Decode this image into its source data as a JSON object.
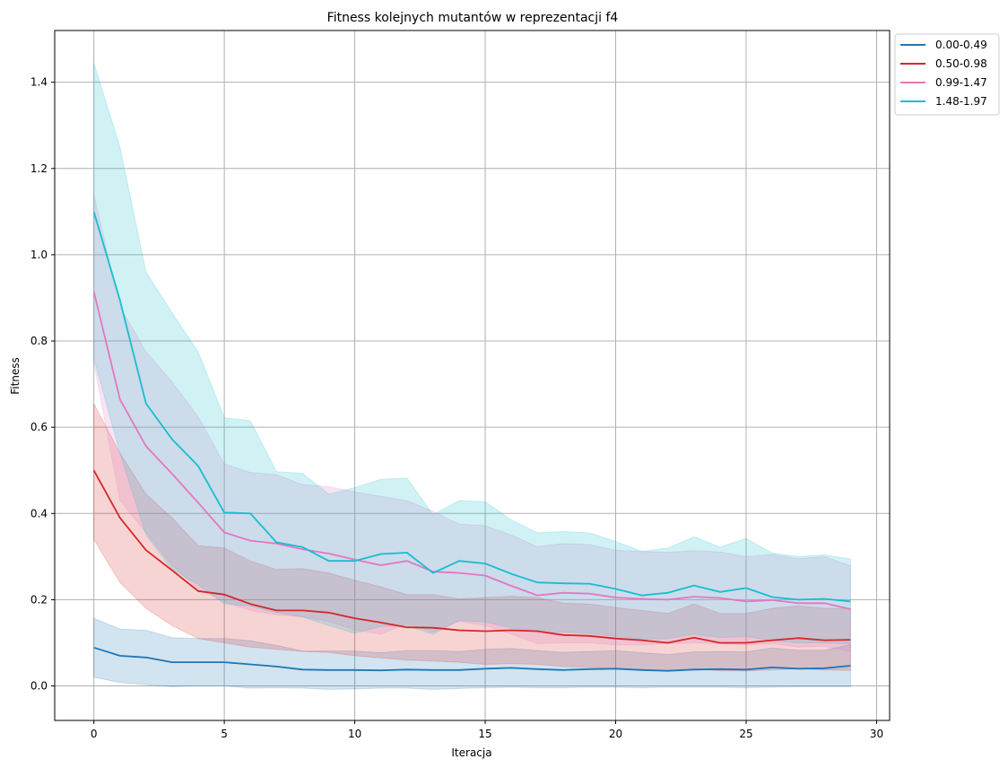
{
  "chart_data": {
    "type": "line",
    "title": "Fitness kolejnych mutantów w reprezentacji f4",
    "xlabel": "Iteracja",
    "ylabel": "Fitness",
    "xlim": [
      -1.5,
      30.5
    ],
    "ylim": [
      -0.08,
      1.52
    ],
    "xticks": [
      0,
      5,
      10,
      15,
      20,
      25,
      30
    ],
    "yticks": [
      0.0,
      0.2,
      0.4,
      0.6,
      0.8,
      1.0,
      1.2,
      1.4
    ],
    "grid": true,
    "legend_position": "outside top-right",
    "x": [
      0,
      1,
      2,
      3,
      4,
      5,
      6,
      7,
      8,
      9,
      10,
      11,
      12,
      13,
      14,
      15,
      16,
      17,
      18,
      19,
      20,
      21,
      22,
      23,
      24,
      25,
      26,
      27,
      28,
      29
    ],
    "series": [
      {
        "name": "0.00-0.49",
        "color": "#1f77b4",
        "mean": [
          0.089,
          0.07,
          0.066,
          0.055,
          0.055,
          0.055,
          0.05,
          0.045,
          0.038,
          0.037,
          0.037,
          0.036,
          0.038,
          0.037,
          0.037,
          0.04,
          0.042,
          0.039,
          0.037,
          0.039,
          0.04,
          0.037,
          0.035,
          0.038,
          0.039,
          0.038,
          0.043,
          0.04,
          0.041,
          0.047
        ],
        "lower": [
          0.02,
          0.008,
          0.003,
          -0.002,
          0.0,
          0.0,
          -0.005,
          -0.004,
          -0.005,
          -0.008,
          -0.007,
          -0.005,
          -0.005,
          -0.008,
          -0.006,
          -0.004,
          -0.003,
          -0.004,
          -0.004,
          -0.003,
          -0.003,
          -0.004,
          -0.003,
          -0.003,
          -0.003,
          -0.004,
          -0.003,
          -0.002,
          -0.002,
          -0.002
        ],
        "upper": [
          0.157,
          0.132,
          0.129,
          0.112,
          0.11,
          0.11,
          0.105,
          0.094,
          0.081,
          0.081,
          0.081,
          0.077,
          0.082,
          0.082,
          0.08,
          0.085,
          0.087,
          0.082,
          0.078,
          0.08,
          0.082,
          0.077,
          0.073,
          0.079,
          0.08,
          0.079,
          0.088,
          0.083,
          0.083,
          0.096
        ]
      },
      {
        "name": "0.50-0.98",
        "color": "#d62728",
        "mean": [
          0.5,
          0.39,
          0.315,
          0.268,
          0.22,
          0.212,
          0.19,
          0.175,
          0.175,
          0.17,
          0.157,
          0.147,
          0.136,
          0.135,
          0.129,
          0.127,
          0.129,
          0.127,
          0.118,
          0.116,
          0.11,
          0.106,
          0.1,
          0.112,
          0.1,
          0.1,
          0.106,
          0.111,
          0.106,
          0.107
        ],
        "lower": [
          0.34,
          0.24,
          0.18,
          0.14,
          0.11,
          0.1,
          0.09,
          0.085,
          0.08,
          0.078,
          0.07,
          0.065,
          0.06,
          0.058,
          0.055,
          0.05,
          0.052,
          0.05,
          0.045,
          0.043,
          0.04,
          0.038,
          0.035,
          0.04,
          0.035,
          0.035,
          0.037,
          0.04,
          0.037,
          0.036
        ],
        "upper": [
          0.655,
          0.54,
          0.445,
          0.39,
          0.325,
          0.32,
          0.29,
          0.27,
          0.272,
          0.262,
          0.245,
          0.23,
          0.212,
          0.212,
          0.202,
          0.205,
          0.208,
          0.205,
          0.192,
          0.19,
          0.182,
          0.175,
          0.168,
          0.19,
          0.168,
          0.168,
          0.18,
          0.186,
          0.18,
          0.18
        ]
      },
      {
        "name": "0.99-1.47",
        "color": "#e377c2",
        "mean": [
          0.915,
          0.665,
          0.556,
          0.492,
          0.425,
          0.356,
          0.337,
          0.33,
          0.317,
          0.307,
          0.293,
          0.28,
          0.29,
          0.265,
          0.262,
          0.256,
          0.232,
          0.21,
          0.216,
          0.214,
          0.205,
          0.202,
          0.2,
          0.207,
          0.204,
          0.196,
          0.199,
          0.192,
          0.192,
          0.178
        ],
        "lower": [
          0.75,
          0.43,
          0.355,
          0.28,
          0.225,
          0.195,
          0.175,
          0.165,
          0.16,
          0.15,
          0.13,
          0.12,
          0.145,
          0.125,
          0.15,
          0.14,
          0.12,
          0.098,
          0.1,
          0.1,
          0.095,
          0.095,
          0.098,
          0.1,
          0.098,
          0.095,
          0.098,
          0.09,
          0.092,
          0.08
        ],
        "upper": [
          1.14,
          0.88,
          0.775,
          0.705,
          0.625,
          0.515,
          0.495,
          0.49,
          0.467,
          0.462,
          0.45,
          0.44,
          0.43,
          0.405,
          0.375,
          0.372,
          0.35,
          0.323,
          0.33,
          0.328,
          0.315,
          0.312,
          0.31,
          0.314,
          0.311,
          0.3,
          0.305,
          0.295,
          0.3,
          0.279
        ]
      },
      {
        "name": "1.48-1.97",
        "color": "#17becf",
        "mean": [
          1.1,
          0.895,
          0.655,
          0.572,
          0.51,
          0.402,
          0.4,
          0.333,
          0.322,
          0.29,
          0.29,
          0.306,
          0.309,
          0.262,
          0.29,
          0.284,
          0.26,
          0.24,
          0.238,
          0.237,
          0.225,
          0.21,
          0.216,
          0.233,
          0.218,
          0.227,
          0.206,
          0.2,
          0.202,
          0.196
        ],
        "lower": [
          0.76,
          0.54,
          0.35,
          0.27,
          0.235,
          0.19,
          0.185,
          0.17,
          0.16,
          0.14,
          0.122,
          0.138,
          0.14,
          0.12,
          0.152,
          0.148,
          0.135,
          0.125,
          0.125,
          0.122,
          0.115,
          0.108,
          0.11,
          0.12,
          0.112,
          0.115,
          0.105,
          0.1,
          0.1,
          0.098
        ],
        "upper": [
          1.445,
          1.25,
          0.96,
          0.865,
          0.775,
          0.622,
          0.615,
          0.497,
          0.493,
          0.445,
          0.46,
          0.479,
          0.482,
          0.397,
          0.43,
          0.427,
          0.385,
          0.355,
          0.358,
          0.355,
          0.335,
          0.312,
          0.32,
          0.346,
          0.322,
          0.342,
          0.308,
          0.3,
          0.304,
          0.294
        ]
      }
    ]
  }
}
